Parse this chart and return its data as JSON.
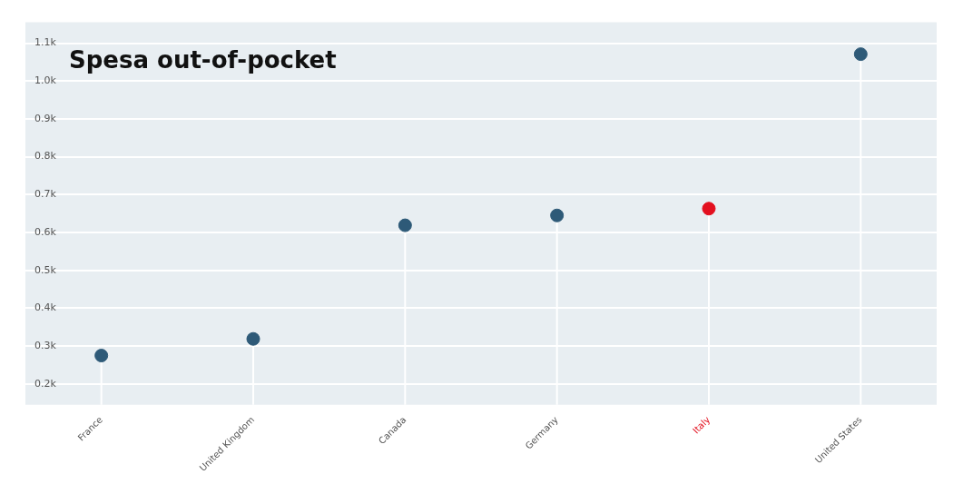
{
  "chart_data": {
    "type": "lollipop",
    "title": "Spesa out-of-pocket",
    "categories": [
      "France",
      "United Kingdom",
      "Canada",
      "Germany",
      "Italy",
      "United States"
    ],
    "values": [
      275,
      319,
      619,
      645,
      663,
      1071
    ],
    "color": "#2e5a78",
    "colors": [
      "#2e5a78",
      "#2e5a78",
      "#2e5a78",
      "#2e5a78",
      "#e3101f",
      "#2e5a78"
    ],
    "ylim": [
      145,
      1155
    ],
    "yticks": [
      {
        "value": 200,
        "label": "0.2k"
      },
      {
        "value": 300,
        "label": "0.3k"
      },
      {
        "value": 400,
        "label": "0.4k"
      },
      {
        "value": 500,
        "label": "0.5k"
      },
      {
        "value": 600,
        "label": "0.6k"
      },
      {
        "value": 700,
        "label": "0.7k"
      },
      {
        "value": 800,
        "label": "0.8k"
      },
      {
        "value": 900,
        "label": "0.9k"
      },
      {
        "value": 1000,
        "label": "1.0k"
      },
      {
        "value": 1100,
        "label": "1.1k"
      }
    ],
    "grid": "y",
    "legend": false,
    "marker": "circle"
  }
}
